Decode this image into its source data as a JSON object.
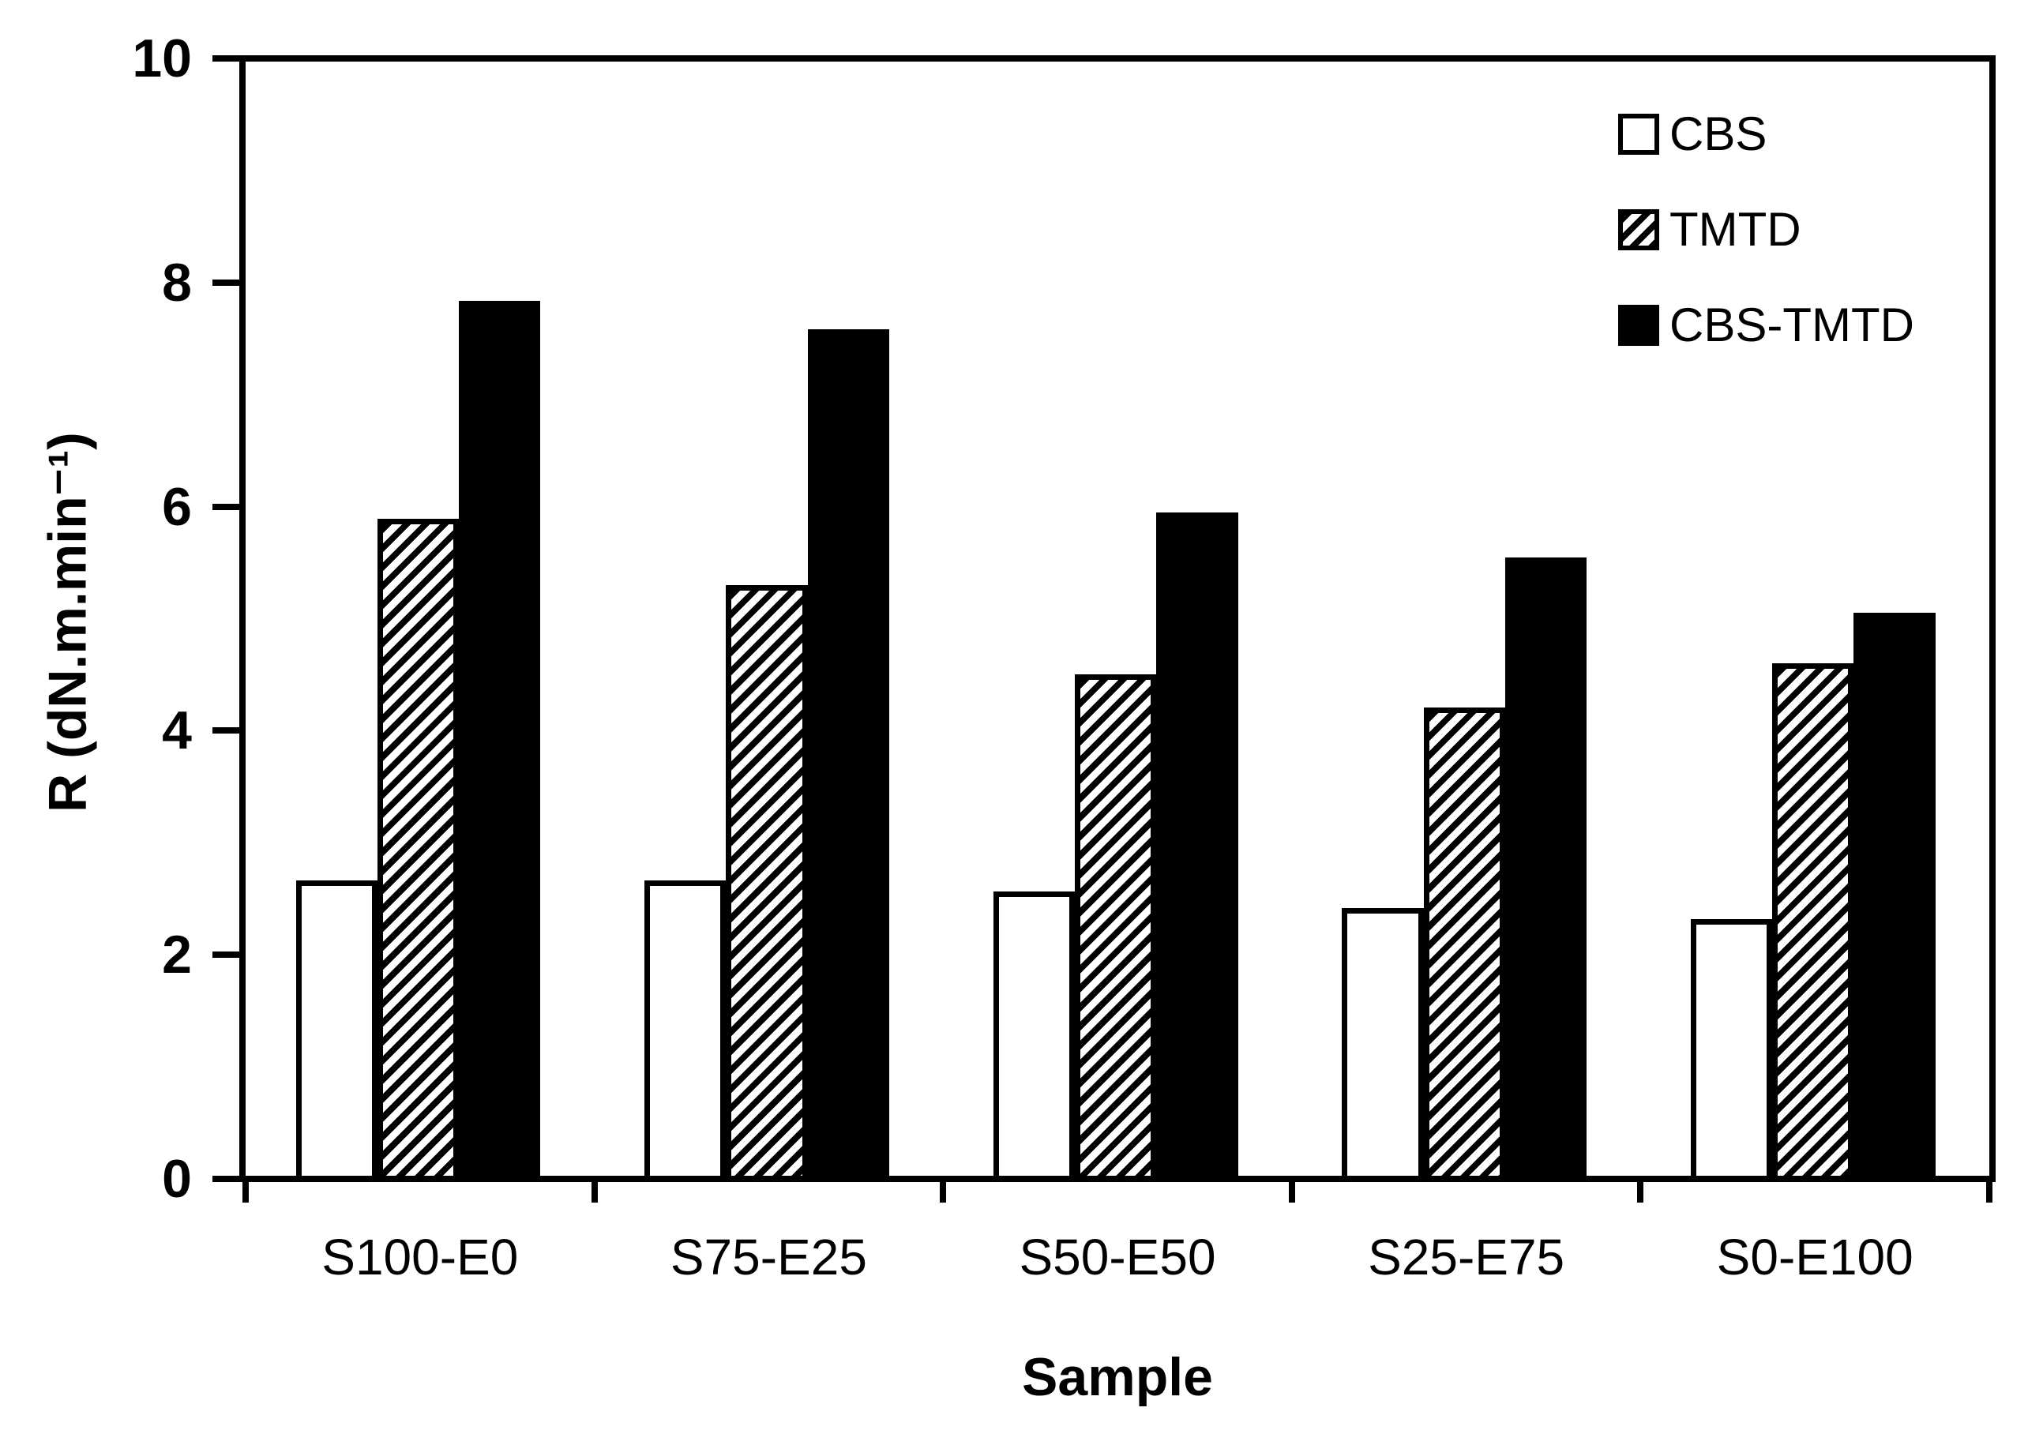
{
  "figure": {
    "background_color": "#ffffff",
    "ink_color": "#000000"
  },
  "chart_data": {
    "type": "bar",
    "title": "",
    "xlabel": "Sample",
    "ylabel": "R (dN.m.min⁻¹)",
    "categories": [
      "S100-E0",
      "S75-E25",
      "S50-E50",
      "S25-E75",
      "S0-E100"
    ],
    "series": [
      {
        "name": "CBS",
        "fill": "white",
        "values": [
          2.65,
          2.65,
          2.55,
          2.4,
          2.3
        ]
      },
      {
        "name": "TMTD",
        "fill": "hatch",
        "values": [
          5.9,
          5.3,
          4.5,
          4.2,
          4.6
        ]
      },
      {
        "name": "CBS-TMTD",
        "fill": "black",
        "values": [
          7.85,
          7.6,
          5.95,
          5.55,
          5.05
        ]
      }
    ],
    "ylim": [
      0,
      10
    ],
    "yticks": [
      0,
      2,
      4,
      6,
      8,
      10
    ],
    "grid": "off",
    "legend_position": "inside-top-right",
    "legend_labels": [
      "CBS",
      "TMTD",
      "CBS-TMTD"
    ]
  }
}
